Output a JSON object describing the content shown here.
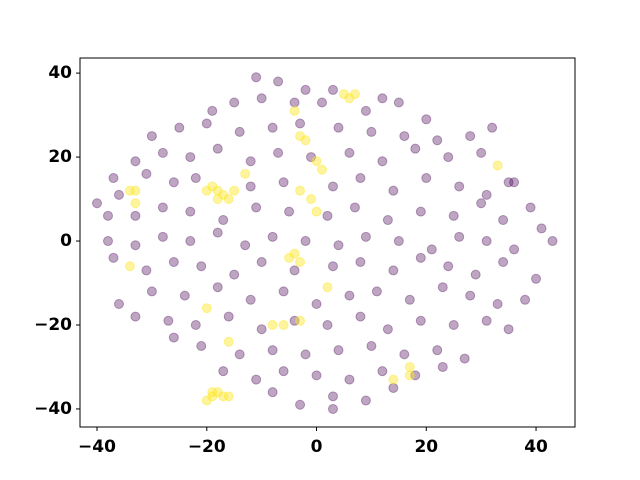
{
  "chart_data": {
    "type": "scatter",
    "xlim": [
      -43.1,
      47.1
    ],
    "ylim": [
      -44.3,
      43.6
    ],
    "xticks": [
      {
        "value": -40,
        "label": "−40"
      },
      {
        "value": -20,
        "label": "−20"
      },
      0,
      20,
      40
    ],
    "yticks": [
      {
        "value": -40,
        "label": "−40"
      },
      {
        "value": -20,
        "label": "−20"
      },
      0,
      20,
      40
    ],
    "series": [
      {
        "color": "#440154",
        "opacity": 0.35,
        "x": [
          -11,
          -7,
          3,
          12,
          -2,
          -15,
          -10,
          -4,
          1,
          9,
          15,
          20,
          -19,
          -30,
          -25,
          -20,
          -14,
          -8,
          -3,
          4,
          10,
          16,
          22,
          28,
          32,
          -37,
          -33,
          -28,
          -23,
          -18,
          -12,
          -7,
          -1,
          6,
          12,
          18,
          24,
          30,
          35,
          -36,
          -31,
          -26,
          -22,
          -12,
          -6,
          3,
          8,
          14,
          20,
          26,
          31,
          36,
          -38,
          -33,
          -28,
          -23,
          -17,
          -11,
          -5,
          2,
          7,
          13,
          19,
          25,
          30,
          34,
          39,
          -40,
          -38,
          -33,
          -28,
          -23,
          -18,
          -13,
          -8,
          -2,
          4,
          9,
          15,
          21,
          26,
          31,
          36,
          41,
          43,
          -37,
          -31,
          -26,
          -21,
          -15,
          -10,
          -4,
          3,
          8,
          14,
          19,
          24,
          29,
          34,
          40,
          -36,
          -30,
          -24,
          -18,
          -12,
          -6,
          0,
          6,
          11,
          17,
          23,
          28,
          33,
          38,
          -33,
          -27,
          -22,
          -16,
          -10,
          -4,
          2,
          8,
          13,
          19,
          25,
          31,
          35,
          -26,
          -21,
          -14,
          -8,
          -2,
          4,
          10,
          16,
          22,
          27,
          -17,
          -11,
          -6,
          0,
          6,
          12,
          18,
          23,
          -8,
          -3,
          3,
          9,
          14,
          3
        ],
        "values": [
          39,
          38,
          36,
          34,
          36,
          33,
          34,
          33,
          33,
          31,
          33,
          29,
          31,
          25,
          27,
          28,
          26,
          27,
          28,
          27,
          26,
          25,
          24,
          25,
          27,
          15,
          19,
          21,
          20,
          22,
          19,
          21,
          20,
          21,
          19,
          22,
          20,
          21,
          14,
          11,
          16,
          14,
          15,
          13,
          14,
          13,
          15,
          12,
          15,
          13,
          11,
          14,
          6,
          6,
          8,
          7,
          5,
          8,
          7,
          6,
          8,
          5,
          7,
          6,
          9,
          5,
          8,
          9,
          0,
          -1,
          1,
          0,
          2,
          -1,
          1,
          0,
          -1,
          1,
          0,
          -2,
          1,
          0,
          -2,
          3,
          0,
          -4,
          -7,
          -5,
          -6,
          -8,
          -5,
          -7,
          -6,
          -5,
          -7,
          -4,
          -6,
          -8,
          -5,
          -9,
          -15,
          -12,
          -13,
          -11,
          -14,
          -12,
          -15,
          -13,
          -12,
          -14,
          -11,
          -13,
          -15,
          -14,
          -18,
          -19,
          -20,
          -18,
          -21,
          -19,
          -20,
          -18,
          -21,
          -19,
          -20,
          -19,
          -21,
          -23,
          -25,
          -27,
          -26,
          -27,
          -26,
          -25,
          -27,
          -26,
          -28,
          -31,
          -33,
          -31,
          -32,
          -33,
          -31,
          -32,
          -30,
          -36,
          -39,
          -37,
          -38,
          -35,
          -40
        ]
      },
      {
        "color": "#fde725",
        "opacity": 0.45,
        "x": [
          -20,
          -19,
          -18,
          -17,
          -16,
          -19,
          -20,
          -19,
          -18,
          -17,
          -16,
          -15,
          -18,
          -34,
          -33,
          -33,
          -34,
          5,
          6,
          7,
          -4,
          -3,
          -2,
          0,
          1,
          -3,
          -1,
          -5,
          -4,
          -3,
          -20,
          -16,
          -8,
          -6,
          -3,
          14,
          17,
          17,
          33,
          2,
          -13,
          0
        ],
        "values": [
          -38,
          -37,
          -36,
          -37,
          -37,
          -36,
          12,
          13,
          12,
          11,
          10,
          12,
          10,
          12,
          12,
          9,
          -6,
          35,
          34,
          35,
          31,
          25,
          24,
          19,
          17,
          12,
          10,
          -4,
          -3,
          -5,
          -16,
          -24,
          -20,
          -20,
          -19,
          -33,
          -30,
          -32,
          18,
          -11,
          16,
          7
        ]
      }
    ]
  }
}
